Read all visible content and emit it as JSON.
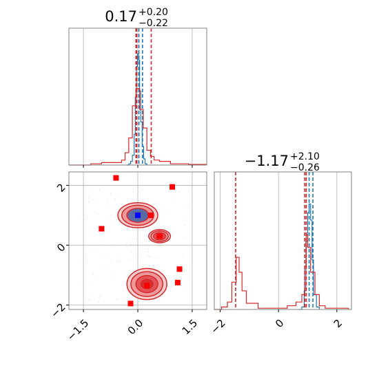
{
  "chart_data": {
    "type": "corner",
    "colors": {
      "blue": "#1f77b4",
      "red": "#d62728",
      "marker_red": "#ff0000",
      "marker_blue": "#0000ff",
      "grid": "#b0b0b0"
    },
    "panels": [
      {
        "id": "hist-x",
        "kind": "histogram",
        "title": {
          "value": "0.17",
          "plus": "+0.20",
          "minus": "−0.22"
        },
        "xlim": [
          -1.9,
          1.9
        ],
        "grid_x": [
          -1.5,
          0.0,
          1.5
        ],
        "series": [
          {
            "color": "#1f77b4",
            "bins": [
              [
                -0.3,
                0
              ],
              [
                -0.25,
                0.01
              ],
              [
                -0.2,
                0.03
              ],
              [
                -0.15,
                0.08
              ],
              [
                -0.1,
                0.25
              ],
              [
                -0.07,
                0.55
              ],
              [
                -0.04,
                0.8
              ],
              [
                -0.01,
                0.9
              ],
              [
                0.02,
                0.85
              ],
              [
                0.05,
                0.6
              ],
              [
                0.08,
                0.35
              ],
              [
                0.12,
                0.15
              ],
              [
                0.16,
                0.05
              ],
              [
                0.2,
                0.01
              ],
              [
                0.25,
                0
              ]
            ],
            "quantiles": [
              -0.05,
              0.03,
              0.13
            ]
          },
          {
            "color": "#d62728",
            "bins": [
              [
                -1.9,
                0
              ],
              [
                -1.3,
                0.01
              ],
              [
                -1.0,
                0.02
              ],
              [
                -0.6,
                0.02
              ],
              [
                -0.45,
                0.04
              ],
              [
                -0.35,
                0.1
              ],
              [
                -0.25,
                0.22
              ],
              [
                -0.15,
                0.48
              ],
              [
                -0.05,
                0.62
              ],
              [
                0.05,
                0.45
              ],
              [
                0.15,
                0.3
              ],
              [
                0.25,
                0.12
              ],
              [
                0.35,
                0.07
              ],
              [
                0.45,
                0.04
              ],
              [
                0.6,
                0.03
              ],
              [
                0.9,
                0.01
              ],
              [
                1.4,
                0.005
              ],
              [
                1.9,
                0
              ]
            ],
            "quantiles": [
              -0.05,
              -0.03,
              0.37
            ]
          }
        ]
      },
      {
        "id": "hist-y",
        "kind": "histogram",
        "title": {
          "value": "−1.17",
          "plus": "+2.10",
          "minus": "−0.26"
        },
        "xlim": [
          -2.2,
          2.5
        ],
        "grid_x": [
          -2,
          0,
          2
        ],
        "series": [
          {
            "color": "#1f77b4",
            "bins": [
              [
                0.7,
                0
              ],
              [
                0.8,
                0.02
              ],
              [
                0.88,
                0.15
              ],
              [
                0.94,
                0.55
              ],
              [
                1.0,
                0.78
              ],
              [
                1.05,
                0.85
              ],
              [
                1.1,
                0.72
              ],
              [
                1.15,
                0.4
              ],
              [
                1.2,
                0.12
              ],
              [
                1.3,
                0.02
              ],
              [
                1.4,
                0
              ]
            ],
            "quantiles": [
              0.95,
              1.05,
              1.18
            ]
          },
          {
            "color": "#d62728",
            "bins": [
              [
                -2.2,
                0
              ],
              [
                -1.95,
                0.02
              ],
              [
                -1.75,
                0.06
              ],
              [
                -1.6,
                0.22
              ],
              [
                -1.45,
                0.42
              ],
              [
                -1.35,
                0.3
              ],
              [
                -1.25,
                0.15
              ],
              [
                -1.1,
                0.05
              ],
              [
                -0.7,
                0.01
              ],
              [
                -0.1,
                0.01
              ],
              [
                0.3,
                0.03
              ],
              [
                0.6,
                0.06
              ],
              [
                0.8,
                0.12
              ],
              [
                0.9,
                0.35
              ],
              [
                0.95,
                0.6
              ],
              [
                1.0,
                0.5
              ],
              [
                1.1,
                0.3
              ],
              [
                1.25,
                0.12
              ],
              [
                1.4,
                0.03
              ],
              [
                1.6,
                0.01
              ],
              [
                2.4,
                0
              ]
            ],
            "quantiles": [
              -1.47,
              0.9,
              0.95
            ]
          }
        ]
      },
      {
        "id": "scatter-xy",
        "kind": "scatter_contour",
        "xlim": [
          -1.9,
          1.9
        ],
        "ylim": [
          -2.15,
          2.45
        ],
        "grid_x": [
          -1.5,
          0.0,
          1.5
        ],
        "grid_y": [
          -2,
          0,
          2
        ],
        "markers_red": [
          [
            -0.6,
            2.25
          ],
          [
            0.95,
            1.95
          ],
          [
            0.35,
            1.0
          ],
          [
            -1.0,
            0.55
          ],
          [
            0.6,
            0.3
          ],
          [
            1.15,
            -0.8
          ],
          [
            1.1,
            -1.25
          ],
          [
            0.25,
            -1.35
          ],
          [
            -0.2,
            -1.95
          ]
        ],
        "markers_blue": [
          [
            0.0,
            1.0
          ]
        ],
        "contours": [
          {
            "cx": 0.0,
            "cy": 1.0,
            "rx": 0.55,
            "ry": 0.42
          },
          {
            "cx": 0.6,
            "cy": 0.3,
            "rx": 0.3,
            "ry": 0.22
          },
          {
            "cx": 0.25,
            "cy": -1.3,
            "rx": 0.55,
            "ry": 0.52
          }
        ]
      }
    ],
    "x_tick_labels": {
      "scatter-xy": [
        "−1.5",
        "0.0",
        "1.5"
      ],
      "hist-y": [
        "−2",
        "0",
        "2"
      ]
    },
    "y_tick_labels": {
      "scatter-xy": [
        "−2",
        "0",
        "2"
      ]
    }
  }
}
